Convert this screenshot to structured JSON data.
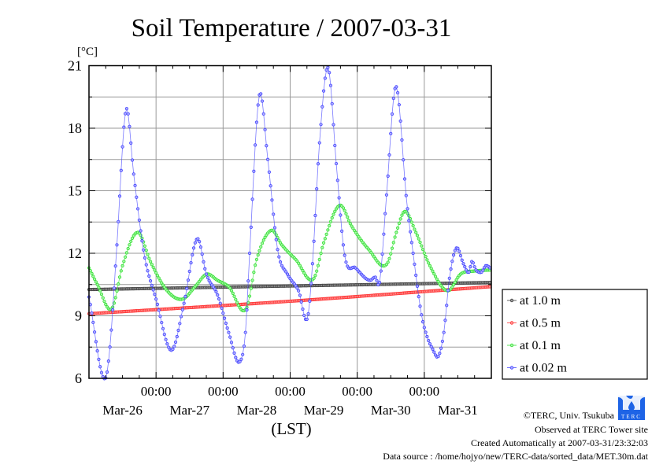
{
  "chart_data": {
    "type": "line",
    "title": "Soil Temperature / 2007-03-31",
    "ylabel": "[°C]",
    "xlabel": "(LST)",
    "ylim": [
      6,
      21
    ],
    "yticks": [
      "21",
      "18",
      "15",
      "12",
      "9",
      "6"
    ],
    "ytick_values": [
      21,
      18,
      15,
      12,
      9,
      6
    ],
    "x_unit": "hours since Mar-26 00:00",
    "xlim": [
      0,
      144
    ],
    "xtick_time_label": "00:00",
    "xtick_hours": [
      24,
      48,
      72,
      96,
      120
    ],
    "day_labels": [
      "Mar-26",
      "Mar-27",
      "Mar-28",
      "Mar-29",
      "Mar-30",
      "Mar-31"
    ],
    "sample_interval_hours": 0.5,
    "grid": true,
    "legend_placement": "right",
    "series": [
      {
        "name": "at 1.0 m",
        "color": "#404040",
        "fill": "#9a9a9a",
        "keypoints": [
          [
            0,
            10.26
          ],
          [
            144,
            10.6
          ]
        ]
      },
      {
        "name": "at 0.5 m",
        "color": "#ff3030",
        "fill": "#ff9a9a",
        "keypoints": [
          [
            0,
            9.1
          ],
          [
            72,
            9.7
          ],
          [
            144,
            10.4
          ]
        ]
      },
      {
        "name": "at 0.1 m",
        "color": "#30e030",
        "fill": "#a8f5a8",
        "keypoints": [
          [
            0,
            11.3
          ],
          [
            3,
            10.5
          ],
          [
            8.2,
            9.35
          ],
          [
            12,
            11.4
          ],
          [
            17.5,
            13.0
          ],
          [
            22,
            11.6
          ],
          [
            28,
            10.2
          ],
          [
            33.5,
            9.8
          ],
          [
            38,
            10.4
          ],
          [
            42.2,
            11.0
          ],
          [
            46,
            10.7
          ],
          [
            50,
            10.4
          ],
          [
            56.3,
            9.35
          ],
          [
            60,
            11.7
          ],
          [
            65.3,
            13.1
          ],
          [
            69,
            12.4
          ],
          [
            74,
            11.7
          ],
          [
            80.5,
            10.8
          ],
          [
            84,
            12.5
          ],
          [
            89.8,
            14.3
          ],
          [
            94,
            13.3
          ],
          [
            100,
            12.2
          ],
          [
            106.7,
            11.5
          ],
          [
            110,
            13.0
          ],
          [
            112.9,
            14.0
          ],
          [
            117,
            13.0
          ],
          [
            122,
            11.4
          ],
          [
            128.4,
            10.2
          ],
          [
            133,
            11.0
          ],
          [
            138,
            11.15
          ],
          [
            144,
            11.2
          ]
        ]
      },
      {
        "name": "at 0.02 m",
        "color": "#4040ff",
        "fill": "#b0b0ff",
        "keypoints": [
          [
            0,
            9.9
          ],
          [
            5.9,
            6.0
          ],
          [
            7.5,
            7.5
          ],
          [
            9.9,
            12.2
          ],
          [
            13.3,
            18.9
          ],
          [
            16,
            15.8
          ],
          [
            19.7,
            12.0
          ],
          [
            24,
            9.8
          ],
          [
            29.6,
            7.35
          ],
          [
            34,
            9.6
          ],
          [
            38.8,
            12.7
          ],
          [
            42,
            11.0
          ],
          [
            46,
            10.0
          ],
          [
            50,
            8.2
          ],
          [
            54,
            6.8
          ],
          [
            56,
            8.2
          ],
          [
            57.5,
            12
          ],
          [
            61,
            19.6
          ],
          [
            64,
            16.5
          ],
          [
            67.6,
            12.1
          ],
          [
            71,
            11
          ],
          [
            75,
            10.2
          ],
          [
            78.3,
            8.95
          ],
          [
            80,
            11.5
          ],
          [
            82.5,
            17.3
          ],
          [
            85.6,
            20.9
          ],
          [
            88.5,
            16.3
          ],
          [
            91.5,
            11.9
          ],
          [
            95.4,
            11.3
          ],
          [
            100.5,
            10.7
          ],
          [
            102.5,
            10.85
          ],
          [
            104,
            10.6
          ],
          [
            106.5,
            14.8
          ],
          [
            109.8,
            20.0
          ],
          [
            113.7,
            14.5
          ],
          [
            116,
            12
          ],
          [
            119,
            9.05
          ],
          [
            121,
            8.0
          ],
          [
            123,
            7.4
          ],
          [
            125,
            7.05
          ],
          [
            127,
            8.2
          ],
          [
            129,
            10.8
          ],
          [
            131.5,
            12.25
          ],
          [
            134,
            11.5
          ],
          [
            136,
            11.1
          ],
          [
            137,
            11.6
          ],
          [
            138.5,
            11.2
          ],
          [
            140.5,
            11.1
          ],
          [
            142,
            11.4
          ],
          [
            144,
            11.25
          ]
        ]
      }
    ]
  },
  "footer": {
    "copyright": "©TERC, Univ. Tsukuba",
    "observed": "Observed at TERC Tower site",
    "created": "Created Automatically at 2007-03-31/23:32:03",
    "source": "Data source : /home/hojyo/new/TERC-data/sorted_data/MET.30m.dat",
    "logo_text": "TERC"
  }
}
